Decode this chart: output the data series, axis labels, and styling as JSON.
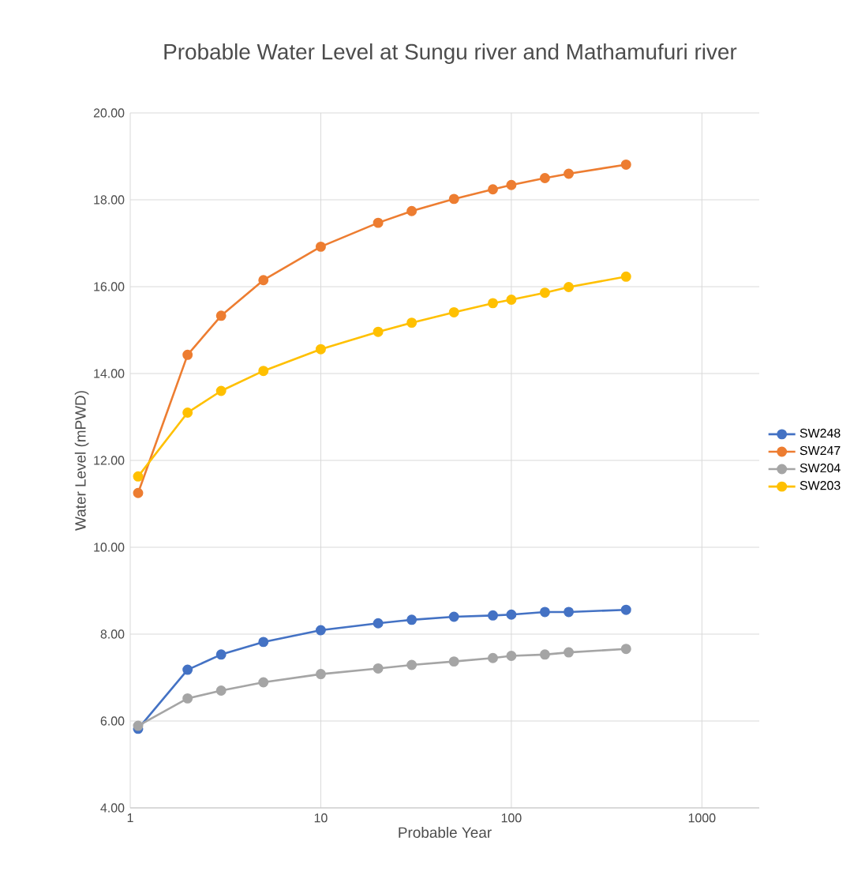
{
  "chart_data": {
    "type": "line",
    "title": "Probable Water Level at Sungu river and Mathamufuri river",
    "xlabel": "Probable Year",
    "ylabel": "Water Level (mPWD)",
    "x": [
      1.1,
      2,
      3,
      5,
      10,
      20,
      30,
      50,
      80,
      100,
      150,
      200,
      400
    ],
    "series": [
      {
        "name": "SW248",
        "color": "#4472c4",
        "values": [
          5.82,
          7.18,
          7.53,
          7.82,
          8.09,
          8.25,
          8.33,
          8.4,
          8.43,
          8.45,
          8.51,
          8.51,
          8.56
        ]
      },
      {
        "name": "SW247",
        "color": "#ed7d31",
        "values": [
          11.25,
          14.43,
          15.33,
          16.15,
          16.92,
          17.47,
          17.74,
          18.02,
          18.24,
          18.34,
          18.5,
          18.6,
          18.81
        ]
      },
      {
        "name": "SW204",
        "color": "#a5a5a5",
        "values": [
          5.89,
          6.52,
          6.7,
          6.89,
          7.08,
          7.21,
          7.29,
          7.37,
          7.45,
          7.5,
          7.53,
          7.58,
          7.66
        ]
      },
      {
        "name": "SW203",
        "color": "#ffc000",
        "values": [
          11.63,
          13.1,
          13.6,
          14.06,
          14.56,
          14.96,
          15.17,
          15.41,
          15.62,
          15.7,
          15.86,
          15.99,
          16.23
        ]
      }
    ],
    "xlim": [
      1,
      2000
    ],
    "xticks": [
      1,
      10,
      100,
      1000
    ],
    "ylim": [
      4,
      20
    ],
    "yticks": [
      {
        "value": 4,
        "label": "4.00"
      },
      {
        "value": 6,
        "label": "6.00"
      },
      {
        "value": 8,
        "label": "8.00"
      },
      {
        "value": 10,
        "label": "10.00"
      },
      {
        "value": 12,
        "label": "12.00"
      },
      {
        "value": 14,
        "label": "14.00"
      },
      {
        "value": 16,
        "label": "16.00"
      },
      {
        "value": 18,
        "label": "18.00"
      },
      {
        "value": 20,
        "label": "20.00"
      }
    ],
    "log": "x",
    "grid": true,
    "legend": "right",
    "marker": "circle",
    "line_style": "solid"
  }
}
